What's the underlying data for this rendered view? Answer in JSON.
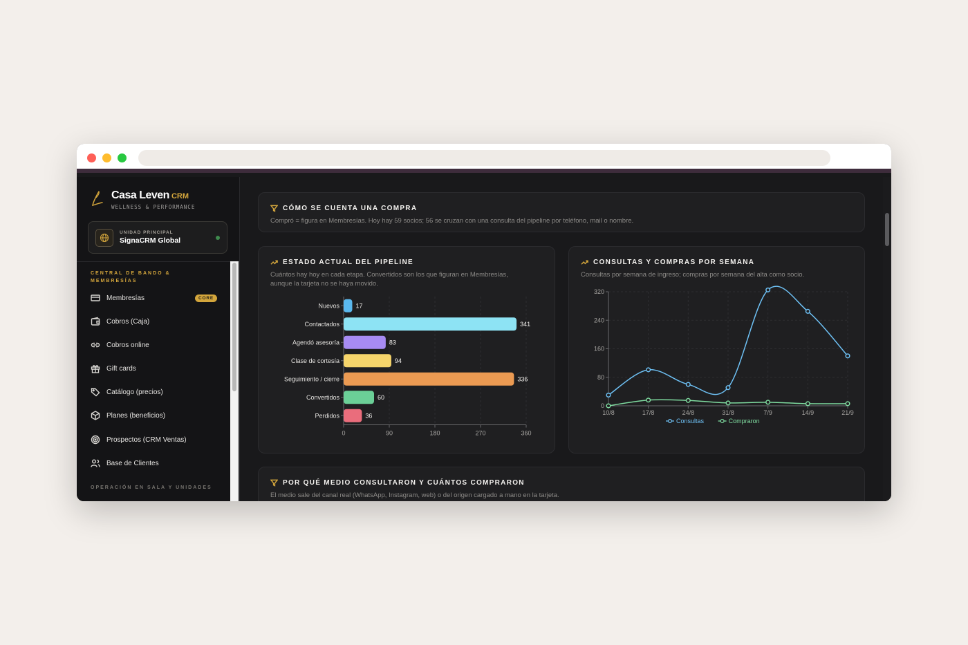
{
  "brand": {
    "name": "Casa Leven",
    "suffix": "CRM",
    "tagline": "WELLNESS & PERFORMANCE"
  },
  "unit": {
    "label": "UNIDAD PRINCIPAL",
    "name": "SignaCRM Global"
  },
  "sidebar": {
    "section1": "CENTRAL DE BANDO & MEMBRESÍAS",
    "items": [
      {
        "label": "Membresías",
        "icon": "card-icon",
        "badge": "CORE"
      },
      {
        "label": "Cobros (Caja)",
        "icon": "wallet-icon"
      },
      {
        "label": "Cobros online",
        "icon": "link-icon"
      },
      {
        "label": "Gift cards",
        "icon": "gift-icon"
      },
      {
        "label": "Catálogo (precios)",
        "icon": "tag-icon"
      },
      {
        "label": "Planes (beneficios)",
        "icon": "box-icon"
      },
      {
        "label": "Prospectos (CRM Ventas)",
        "icon": "target-icon"
      },
      {
        "label": "Base de Clientes",
        "icon": "users-icon"
      }
    ],
    "section2": "OPERACIÓN EN SALA Y UNIDADES"
  },
  "info_card": {
    "title": "CÓMO SE CUENTA UNA COMPRA",
    "desc": "Compró = figura en Membresías. Hoy hay 59 socios; 56 se cruzan con una consulta del pipeline por teléfono, mail o nombre."
  },
  "pipeline_card": {
    "title": "ESTADO ACTUAL DEL PIPELINE",
    "desc1": "Cuántos hay hoy en cada etapa. Convertidos son los que figuran en Membresías,",
    "desc2": "aunque la tarjeta no se haya movido."
  },
  "weekly_card": {
    "title": "CONSULTAS Y COMPRAS POR SEMANA",
    "desc": "Consultas por semana de ingreso; compras por semana del alta como socio."
  },
  "medium_card": {
    "title": "POR QUÉ MEDIO CONSULTARON Y CUÁNTOS COMPRARON",
    "desc": "El medio sale del canal real (WhatsApp, Instagram, web) o del origen cargado a mano en la tarjeta."
  },
  "chart_data": [
    {
      "type": "bar",
      "orientation": "horizontal",
      "categories": [
        "Nuevos",
        "Contactados",
        "Agendó asesoría",
        "Clase de cortesía",
        "Seguimiento / cierre",
        "Convertidos",
        "Perdidos"
      ],
      "values": [
        17,
        341,
        83,
        94,
        336,
        60,
        36
      ],
      "colors": [
        "#5ab8ee",
        "#8de3f4",
        "#a78bf3",
        "#f6d56b",
        "#eb9a52",
        "#6bcf97",
        "#ea6d7c"
      ],
      "xlim": [
        0,
        360
      ],
      "xticks": [
        0,
        90,
        180,
        270,
        360
      ],
      "grid": true
    },
    {
      "type": "line",
      "x": [
        "10/8",
        "17/8",
        "24/8",
        "31/8",
        "7/9",
        "14/9",
        "21/9"
      ],
      "series": [
        {
          "name": "Consultas",
          "color": "#6ec1f5",
          "values": [
            30,
            101,
            60,
            51,
            325,
            265,
            140
          ]
        },
        {
          "name": "Compraron",
          "color": "#7fdca0",
          "values": [
            0,
            16,
            15,
            8,
            10,
            6,
            6
          ]
        }
      ],
      "ylim": [
        0,
        320
      ],
      "yticks": [
        0,
        80,
        160,
        240,
        320
      ],
      "grid": true,
      "legend": "bottom"
    }
  ]
}
